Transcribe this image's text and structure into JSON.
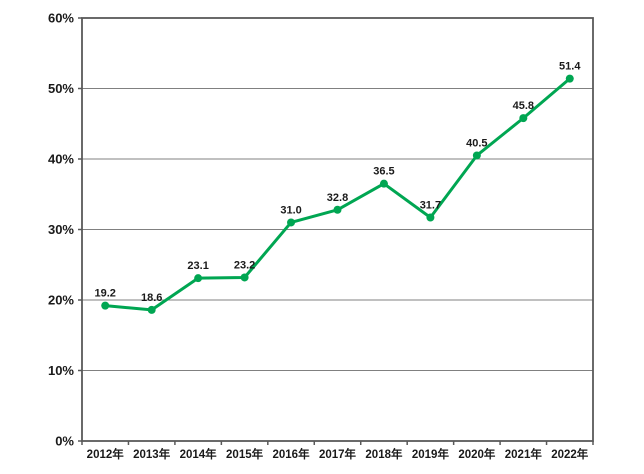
{
  "page": {
    "background": "#ffffff"
  },
  "chart_data": {
    "type": "line",
    "title": "",
    "xlabel": "",
    "ylabel": "",
    "categories": [
      "2012年",
      "2013年",
      "2014年",
      "2015年",
      "2016年",
      "2017年",
      "2018年",
      "2019年",
      "2020年",
      "2021年",
      "2022年"
    ],
    "series": [
      {
        "name": "",
        "values": [
          19.2,
          18.6,
          23.1,
          23.2,
          31.0,
          32.8,
          36.5,
          31.7,
          40.5,
          45.8,
          51.4
        ],
        "data_labels": [
          "19.2",
          "18.6",
          "23.1",
          "23.2",
          "31.0",
          "32.8",
          "36.5",
          "31.7",
          "40.5",
          "45.8",
          "51.4"
        ],
        "color": "#00a652"
      }
    ],
    "ylim": [
      0,
      60
    ],
    "ytick_step": 10,
    "ytick_labels": [
      "0%",
      "10%",
      "20%",
      "30%",
      "40%",
      "50%",
      "60%"
    ],
    "grid": true,
    "legend": "none",
    "colors": {
      "line": "#00a652",
      "marker": "#00a652",
      "gridline": "#808080",
      "frame": "#595959",
      "tick": "#595959",
      "text": "#1a1a1a",
      "background": "#ffffff"
    }
  }
}
